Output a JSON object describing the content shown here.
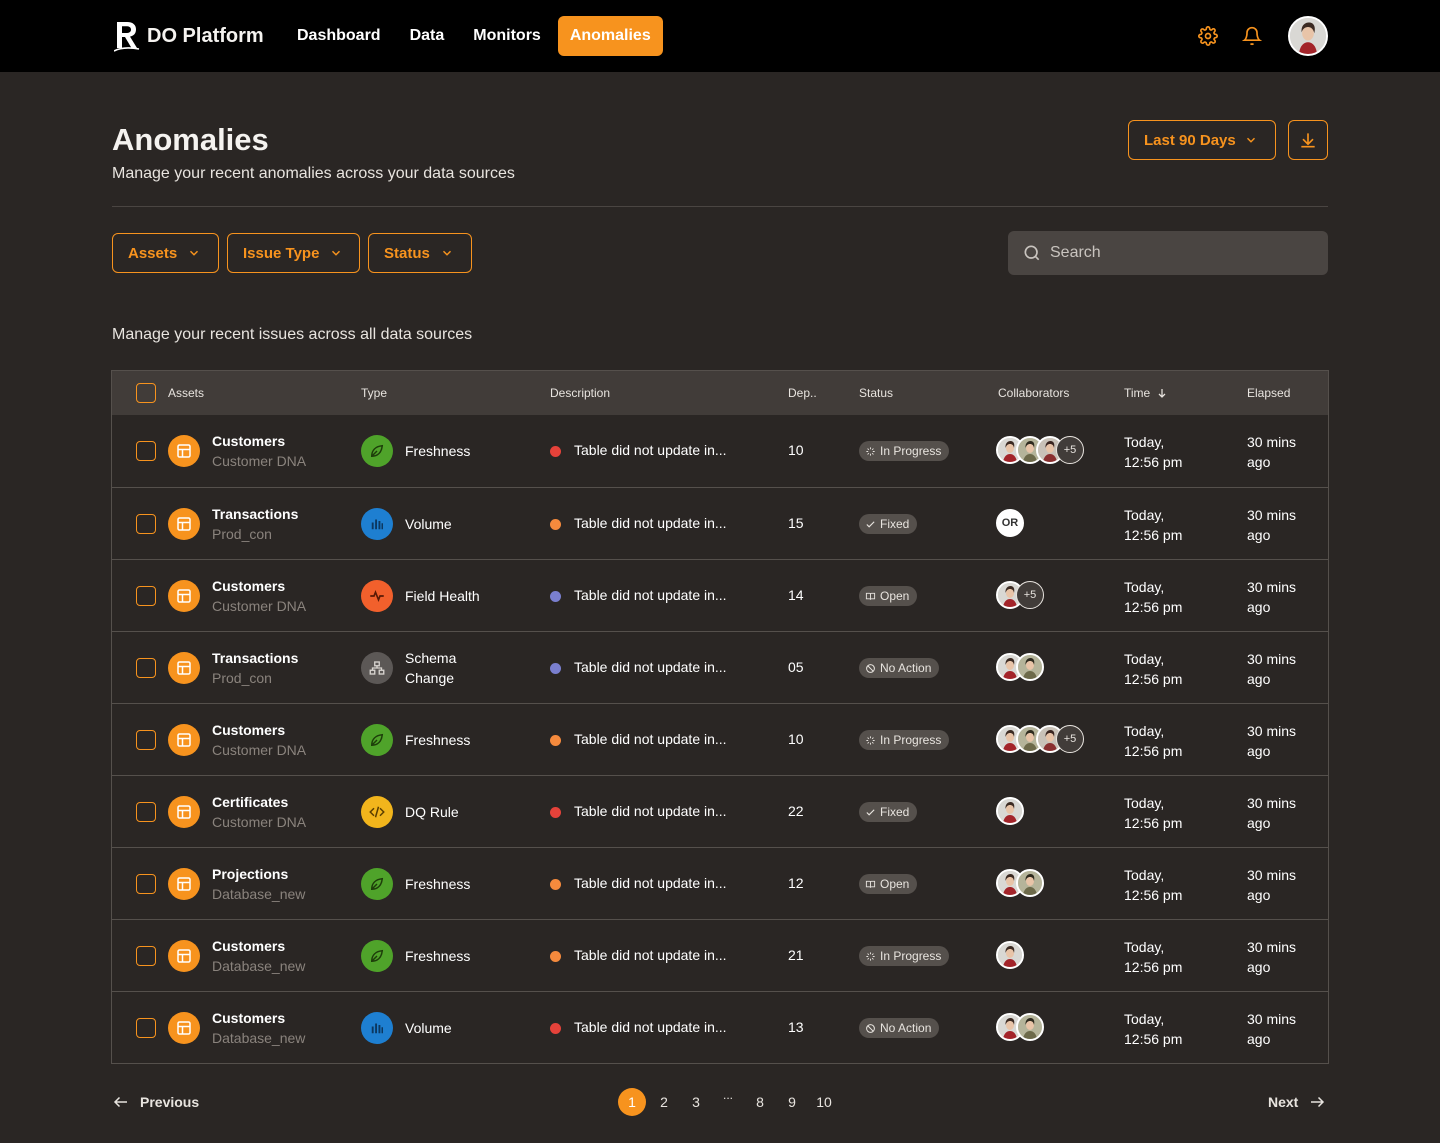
{
  "app": {
    "title": "DO Platform",
    "logo_letter": "R"
  },
  "nav": [
    {
      "label": "Dashboard",
      "active": false
    },
    {
      "label": "Data",
      "active": false
    },
    {
      "label": "Monitors",
      "active": false
    },
    {
      "label": "Anomalies",
      "active": true
    }
  ],
  "header": {
    "title": "Anomalies",
    "subtitle": "Manage your recent anomalies across your data sources",
    "range_label": "Last 90 Days"
  },
  "filters": {
    "assets": "Assets",
    "issue_type": "Issue Type",
    "status": "Status"
  },
  "search": {
    "placeholder": "Search",
    "value": ""
  },
  "section_subtitle": "Manage your recent issues across all data sources",
  "columns": {
    "assets": "Assets",
    "type": "Type",
    "description": "Description",
    "dep": "Dep..",
    "status": "Status",
    "collaborators": "Collaborators",
    "time": "Time",
    "elapsed": "Elapsed"
  },
  "rows": [
    {
      "asset": "Customers",
      "source": "Customer DNA",
      "type": "Freshness",
      "type_icon": "leaf-icon",
      "dot": "#e5423a",
      "desc": "Table did not update in...",
      "dep": "10",
      "status": "In Progress",
      "status_icon": "spinner-icon",
      "avatars": 3,
      "more": "+5",
      "initials": "",
      "time1": "Today,",
      "time2": "12:56 pm",
      "el1": "30 mins",
      "el2": "ago"
    },
    {
      "asset": "Transactions",
      "source": "Prod_con",
      "type": "Volume",
      "type_icon": "bar-chart-icon",
      "dot": "#f58a3d",
      "desc": "Table did not update in...",
      "dep": "15",
      "status": "Fixed",
      "status_icon": "check-icon",
      "avatars": 0,
      "more": "",
      "initials": "OR",
      "time1": "Today,",
      "time2": "12:56 pm",
      "el1": "30 mins",
      "el2": "ago"
    },
    {
      "asset": "Customers",
      "source": "Customer DNA",
      "type": "Field Health",
      "type_icon": "pulse-icon",
      "dot": "#7a7fcf",
      "desc": "Table did not update in...",
      "dep": "14",
      "status": "Open",
      "status_icon": "book-icon",
      "avatars": 1,
      "more": "+5",
      "initials": "",
      "time1": "Today,",
      "time2": "12:56 pm",
      "el1": "30 mins",
      "el2": "ago"
    },
    {
      "asset": "Transactions",
      "source": "Prod_con",
      "type": "Schema Change",
      "type_icon": "schema-icon",
      "dot": "#7a7fcf",
      "desc": "Table did not update in...",
      "dep": "05",
      "status": "No Action",
      "status_icon": "no-entry-icon",
      "avatars": 2,
      "more": "",
      "initials": "",
      "time1": "Today,",
      "time2": "12:56 pm",
      "el1": "30 mins",
      "el2": "ago"
    },
    {
      "asset": "Customers",
      "source": "Customer DNA",
      "type": "Freshness",
      "type_icon": "leaf-icon",
      "dot": "#f58a3d",
      "desc": "Table did not update in...",
      "dep": "10",
      "status": "In Progress",
      "status_icon": "spinner-icon",
      "avatars": 3,
      "more": "+5",
      "initials": "",
      "time1": "Today,",
      "time2": "12:56 pm",
      "el1": "30 mins",
      "el2": "ago"
    },
    {
      "asset": "Certificates",
      "source": "Customer DNA",
      "type": "DQ Rule",
      "type_icon": "code-icon",
      "dot": "#e5423a",
      "desc": "Table did not update in...",
      "dep": "22",
      "status": "Fixed",
      "status_icon": "check-icon",
      "avatars": 1,
      "more": "",
      "initials": "",
      "time1": "Today,",
      "time2": "12:56 pm",
      "el1": "30 mins",
      "el2": "ago"
    },
    {
      "asset": "Projections",
      "source": "Database_new",
      "type": "Freshness",
      "type_icon": "leaf-icon",
      "dot": "#f58a3d",
      "desc": "Table did not update in...",
      "dep": "12",
      "status": "Open",
      "status_icon": "book-icon",
      "avatars": 2,
      "more": "",
      "initials": "",
      "time1": "Today,",
      "time2": "12:56 pm",
      "el1": "30 mins",
      "el2": "ago"
    },
    {
      "asset": "Customers",
      "source": "Database_new",
      "type": "Freshness",
      "type_icon": "leaf-icon",
      "dot": "#f58a3d",
      "desc": "Table did not update in...",
      "dep": "21",
      "status": "In Progress",
      "status_icon": "spinner-icon",
      "avatars": 1,
      "more": "",
      "initials": "",
      "time1": "Today,",
      "time2": "12:56 pm",
      "el1": "30 mins",
      "el2": "ago"
    },
    {
      "asset": "Customers",
      "source": "Database_new",
      "type": "Volume",
      "type_icon": "bar-chart-icon",
      "dot": "#e5423a",
      "desc": "Table did not update in...",
      "dep": "13",
      "status": "No Action",
      "status_icon": "no-entry-icon",
      "avatars": 2,
      "more": "",
      "initials": "",
      "time1": "Today,",
      "time2": "12:56 pm",
      "el1": "30 mins",
      "el2": "ago"
    }
  ],
  "type_colors": {
    "leaf-icon": "#4fa32a",
    "bar-chart-icon": "#1e7fd1",
    "pulse-icon": "#f2602c",
    "schema-icon": "#5c5856",
    "code-icon": "#f2b51c"
  },
  "pagination": {
    "prev": "Previous",
    "next": "Next",
    "pages": [
      "1",
      "2",
      "3",
      "...",
      "8",
      "9",
      "10"
    ],
    "current": "1"
  }
}
